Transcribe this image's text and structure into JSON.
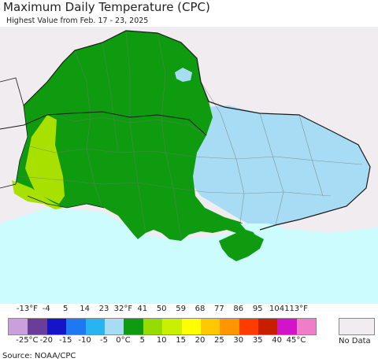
{
  "header": {
    "title": "Maximum Daily Temperature (CPC)",
    "subtitle": "Highest Value from Feb. 17 - 23, 2025"
  },
  "legend": {
    "fahrenheit_labels": [
      "-13°F",
      "-4",
      "5",
      "14",
      "23",
      "32°F",
      "41",
      "50",
      "59",
      "68",
      "77",
      "86",
      "95",
      "104",
      "113°F"
    ],
    "celsius_labels": [
      "-25°C",
      "-20",
      "-15",
      "-10",
      "-5",
      "0°C",
      "5",
      "10",
      "15",
      "20",
      "25",
      "30",
      "35",
      "40",
      "45°C"
    ],
    "colors": [
      "#c9a0dc",
      "#6a3d9a",
      "#1414c8",
      "#1e78f0",
      "#28b4f0",
      "#a8dcf5",
      "#0f9b0f",
      "#96dc00",
      "#c8f000",
      "#ffff00",
      "#ffc800",
      "#ff9600",
      "#ff3c00",
      "#c81e00",
      "#d214c8",
      "#f07dc8"
    ],
    "no_data_label": "No Data",
    "no_data_color": "#f0ecef"
  },
  "map": {
    "background_color": "#f0ecef",
    "sea_color": "#ccfcfd",
    "regions": [
      {
        "name": "mostly-green",
        "color": "#0f9b0f",
        "meaning": "32 to 41°F"
      },
      {
        "name": "light-blue-east",
        "color": "#a8dcf5",
        "meaning": "23 to 32°F"
      },
      {
        "name": "lime-west",
        "color": "#a8e000",
        "meaning": "41 to 50°F"
      }
    ]
  },
  "footer": {
    "source": "Source: NOAA/CPC"
  }
}
